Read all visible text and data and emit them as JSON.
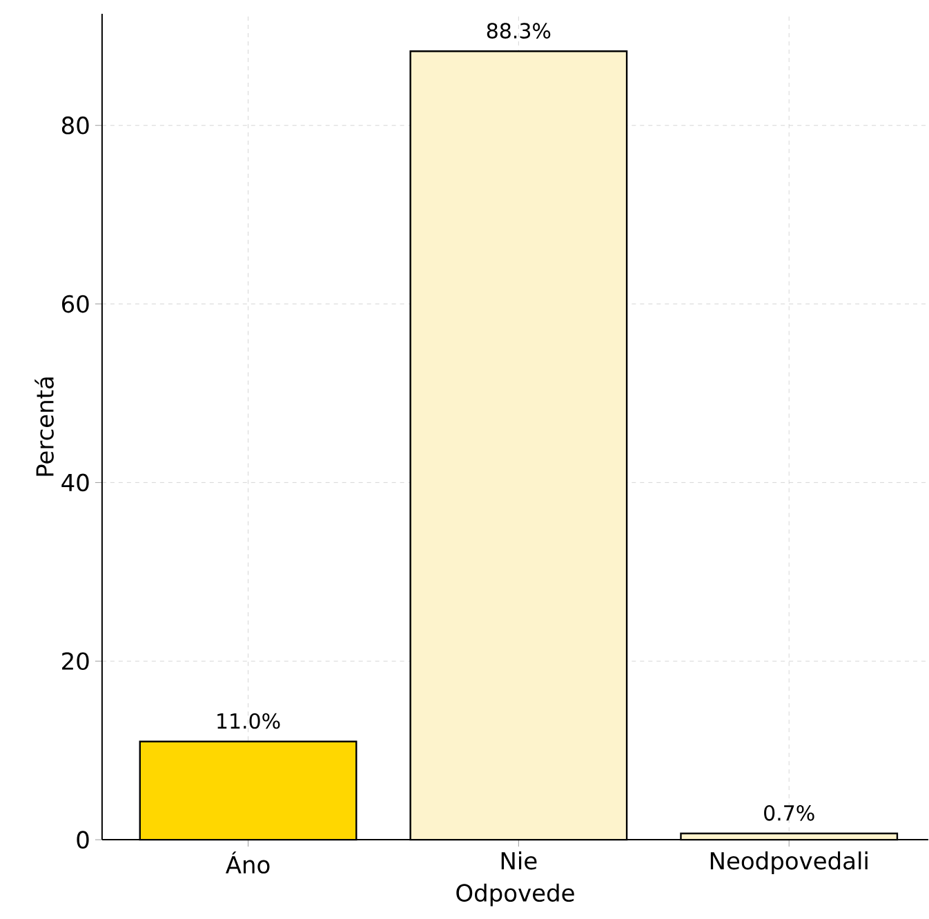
{
  "chart_data": {
    "type": "bar",
    "xlabel": "Odpovede",
    "ylabel": "Percentá",
    "categories": [
      "Áno",
      "Nie",
      "Neodpovedali"
    ],
    "values": [
      11.0,
      88.3,
      0.7
    ],
    "colors": [
      "#ffd700",
      "#fdf3cc",
      "#fdf3cc"
    ],
    "value_labels": [
      "11.0%",
      "88.3%",
      "0.7%"
    ],
    "ylim": [
      0,
      92.5
    ],
    "yticks": [
      0,
      20,
      40,
      60,
      80
    ],
    "grid": true
  }
}
